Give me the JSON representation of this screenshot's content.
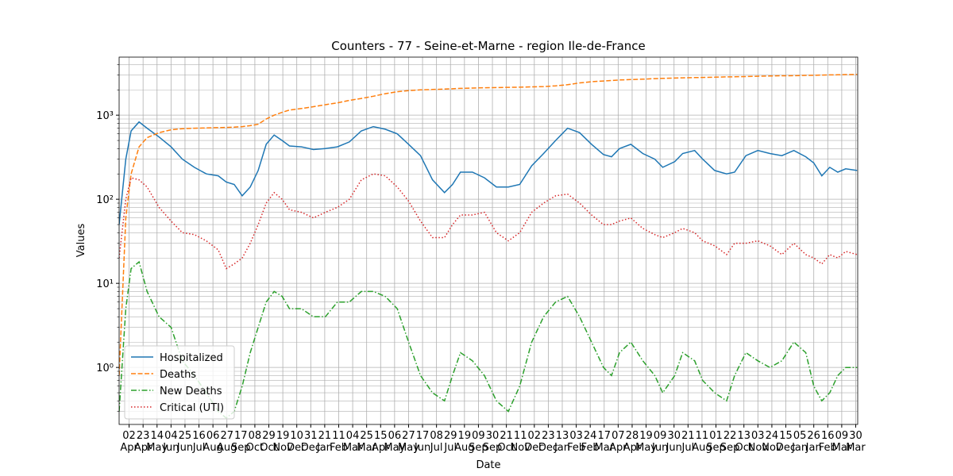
{
  "chart_data": {
    "type": "line",
    "title": "Counters - 77 - Seine-et-Marne - region Ile-de-France",
    "xlabel": "Date",
    "ylabel": "Values",
    "log_y": true,
    "grid": true,
    "minor_grid": true,
    "legend": "lower left",
    "xlim": [
      0,
      1110
    ],
    "ylim": [
      0.21,
      4900
    ],
    "yticks": [
      {
        "value": 1,
        "label": "10⁰"
      },
      {
        "value": 10,
        "label": "10¹"
      },
      {
        "value": 100,
        "label": "10²"
      },
      {
        "value": 1000,
        "label": "10³"
      }
    ],
    "xticks": [
      {
        "value": 15,
        "label": "02\nApr"
      },
      {
        "value": 36,
        "label": "23\nApr"
      },
      {
        "value": 57,
        "label": "14\nMay"
      },
      {
        "value": 78,
        "label": "04\nJun"
      },
      {
        "value": 99,
        "label": "25\nJun"
      },
      {
        "value": 120,
        "label": "16\nJul"
      },
      {
        "value": 141,
        "label": "06\nAug"
      },
      {
        "value": 162,
        "label": "27\nAug"
      },
      {
        "value": 183,
        "label": "17\nSep"
      },
      {
        "value": 204,
        "label": "08\nOct"
      },
      {
        "value": 225,
        "label": "29\nOct"
      },
      {
        "value": 246,
        "label": "19\nNov"
      },
      {
        "value": 267,
        "label": "10\nDec"
      },
      {
        "value": 288,
        "label": "31\nDec"
      },
      {
        "value": 309,
        "label": "21\nJan"
      },
      {
        "value": 330,
        "label": "11\nFeb"
      },
      {
        "value": 351,
        "label": "04\nMar"
      },
      {
        "value": 372,
        "label": "25\nMar"
      },
      {
        "value": 393,
        "label": "15\nApr"
      },
      {
        "value": 414,
        "label": "06\nMay"
      },
      {
        "value": 435,
        "label": "27\nMay"
      },
      {
        "value": 456,
        "label": "17\nJun"
      },
      {
        "value": 477,
        "label": "08\nJul"
      },
      {
        "value": 498,
        "label": "29\nJul"
      },
      {
        "value": 519,
        "label": "19\nAug"
      },
      {
        "value": 540,
        "label": "09\nSep"
      },
      {
        "value": 561,
        "label": "30\nSep"
      },
      {
        "value": 582,
        "label": "21\nOct"
      },
      {
        "value": 603,
        "label": "11\nNov"
      },
      {
        "value": 624,
        "label": "02\nDec"
      },
      {
        "value": 645,
        "label": "23\nDec"
      },
      {
        "value": 666,
        "label": "13\nJan"
      },
      {
        "value": 687,
        "label": "03\nFeb"
      },
      {
        "value": 708,
        "label": "24\nFeb"
      },
      {
        "value": 729,
        "label": "17\nMar"
      },
      {
        "value": 750,
        "label": "07\nApr"
      },
      {
        "value": 771,
        "label": "28\nApr"
      },
      {
        "value": 792,
        "label": "19\nMay"
      },
      {
        "value": 813,
        "label": "09\nJun"
      },
      {
        "value": 834,
        "label": "30\nJun"
      },
      {
        "value": 855,
        "label": "21\nJul"
      },
      {
        "value": 876,
        "label": "11\nAug"
      },
      {
        "value": 897,
        "label": "01\nSep"
      },
      {
        "value": 918,
        "label": "22\nSep"
      },
      {
        "value": 939,
        "label": "13\nOct"
      },
      {
        "value": 960,
        "label": "03\nNov"
      },
      {
        "value": 981,
        "label": "24\nNov"
      },
      {
        "value": 1002,
        "label": "15\nDec"
      },
      {
        "value": 1023,
        "label": "05\nJan"
      },
      {
        "value": 1044,
        "label": "26\nJan"
      },
      {
        "value": 1065,
        "label": "16\nFeb"
      },
      {
        "value": 1086,
        "label": "09\nMar"
      },
      {
        "value": 1107,
        "label": "30\nMar"
      }
    ],
    "x": [
      0,
      10,
      18,
      30,
      42,
      60,
      78,
      95,
      113,
      131,
      149,
      161,
      173,
      185,
      197,
      209,
      221,
      233,
      245,
      256,
      274,
      292,
      310,
      328,
      346,
      364,
      382,
      400,
      418,
      435,
      453,
      471,
      489,
      501,
      513,
      531,
      549,
      567,
      585,
      602,
      620,
      638,
      656,
      674,
      692,
      710,
      728,
      740,
      752,
      769,
      787,
      805,
      817,
      835,
      847,
      865,
      877,
      895,
      913,
      925,
      942,
      960,
      978,
      996,
      1014,
      1032,
      1044,
      1056,
      1068,
      1080,
      1092,
      1109
    ],
    "series": [
      {
        "name": "Hospitalized",
        "color": "#1f77b4",
        "dash": "solid",
        "values": [
          50,
          300,
          650,
          830,
          700,
          550,
          420,
          300,
          240,
          200,
          190,
          160,
          150,
          110,
          140,
          220,
          450,
          580,
          500,
          430,
          420,
          390,
          400,
          420,
          480,
          650,
          730,
          680,
          600,
          450,
          330,
          170,
          120,
          150,
          210,
          210,
          180,
          140,
          140,
          150,
          250,
          350,
          500,
          700,
          620,
          450,
          340,
          320,
          400,
          450,
          350,
          300,
          240,
          280,
          350,
          380,
          300,
          220,
          200,
          210,
          330,
          380,
          350,
          330,
          380,
          320,
          270,
          190,
          240,
          210,
          230,
          220
        ]
      },
      {
        "name": "Deaths",
        "color": "#ff7f0e",
        "dash": "dashed",
        "values": [
          0.8,
          60,
          200,
          420,
          540,
          620,
          670,
          690,
          700,
          705,
          710,
          715,
          720,
          730,
          750,
          780,
          900,
          1000,
          1080,
          1150,
          1200,
          1260,
          1330,
          1400,
          1500,
          1580,
          1680,
          1800,
          1900,
          1960,
          2000,
          2020,
          2040,
          2060,
          2080,
          2100,
          2120,
          2130,
          2140,
          2150,
          2170,
          2190,
          2230,
          2300,
          2420,
          2500,
          2550,
          2580,
          2620,
          2650,
          2680,
          2720,
          2740,
          2760,
          2780,
          2800,
          2810,
          2830,
          2850,
          2860,
          2880,
          2900,
          2920,
          2940,
          2950,
          2970,
          2980,
          3000,
          3010,
          3020,
          3040,
          3050
        ]
      },
      {
        "name": "New Deaths",
        "color": "#2ca02c",
        "dash": "dashdot",
        "values": [
          0.3,
          5,
          15,
          18,
          8,
          4,
          3,
          1.2,
          0.8,
          0.5,
          0.3,
          0.25,
          0.3,
          0.6,
          1.5,
          3,
          6,
          8,
          7,
          5,
          5,
          4,
          4,
          6,
          6,
          8,
          8,
          7,
          5,
          2,
          0.8,
          0.5,
          0.4,
          0.8,
          1.5,
          1.2,
          0.8,
          0.4,
          0.3,
          0.6,
          2,
          4,
          6,
          7,
          4,
          2,
          1,
          0.8,
          1.5,
          2,
          1.2,
          0.8,
          0.5,
          0.8,
          1.5,
          1.2,
          0.7,
          0.5,
          0.4,
          0.8,
          1.5,
          1.2,
          1,
          1.2,
          2,
          1.5,
          0.6,
          0.4,
          0.5,
          0.8,
          1,
          1
        ]
      },
      {
        "name": "Critical (UTI)",
        "color": "#d62728",
        "dash": "dotted",
        "values": [
          20,
          100,
          180,
          170,
          140,
          80,
          55,
          40,
          38,
          32,
          25,
          15,
          17,
          20,
          30,
          50,
          90,
          120,
          100,
          75,
          70,
          60,
          70,
          80,
          100,
          170,
          200,
          190,
          140,
          95,
          55,
          35,
          35,
          50,
          65,
          65,
          70,
          40,
          32,
          40,
          70,
          90,
          110,
          115,
          90,
          65,
          50,
          50,
          55,
          60,
          45,
          38,
          35,
          40,
          45,
          40,
          32,
          28,
          22,
          30,
          30,
          32,
          28,
          22,
          30,
          22,
          20,
          17,
          22,
          20,
          24,
          22
        ]
      }
    ]
  }
}
